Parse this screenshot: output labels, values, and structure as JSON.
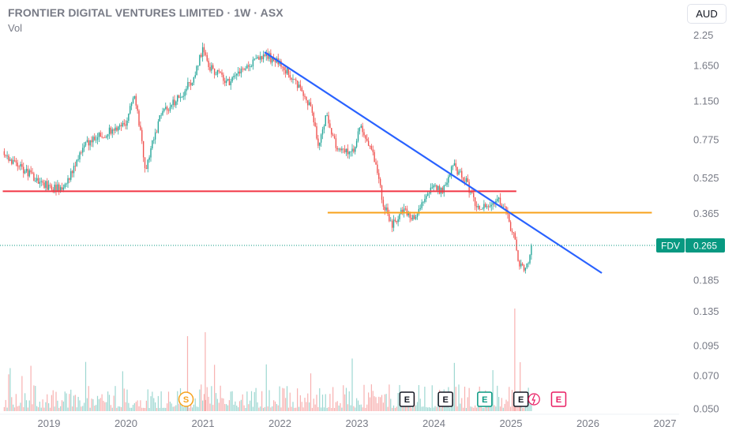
{
  "header": {
    "title": "FRONTIER DIGITAL VENTURES LIMITED · 1W · ASX",
    "volume_label": "Vol"
  },
  "currency_button": "AUD",
  "colors": {
    "up": "#26a69a",
    "down": "#ef5350",
    "trendline": "#2962ff",
    "resistance": "#f23645",
    "support": "#f7a21b",
    "badge": "#089981"
  },
  "price_badge": {
    "ticker": "FDV",
    "price": "0.265"
  },
  "chart_data": {
    "type": "candlestick",
    "y_scale": "log",
    "y_ticks": [
      "2.25",
      "1.650",
      "1.150",
      "0.775",
      "0.525",
      "0.365",
      "0.265",
      "0.185",
      "0.135",
      "0.095",
      "0.070",
      "0.050"
    ],
    "x_ticks": [
      "2019",
      "2020",
      "2021",
      "2022",
      "2023",
      "2024",
      "2025",
      "2026",
      "2027"
    ],
    "last_price": 0.265,
    "trendline": {
      "from": {
        "date": "2021.80",
        "price": 1.9
      },
      "to": {
        "date": "2026.18",
        "price": 0.2
      }
    },
    "horizontal_levels": [
      {
        "price": 0.46,
        "from": "2018.40",
        "to": "2025.07"
      },
      {
        "price": 0.37,
        "from": "2022.62",
        "to": "2026.83"
      }
    ],
    "price_path": [
      [
        "2018.40",
        0.67
      ],
      [
        "2018.60",
        0.6
      ],
      [
        "2018.80",
        0.53
      ],
      [
        "2019.00",
        0.48
      ],
      [
        "2019.15",
        0.47
      ],
      [
        "2019.30",
        0.55
      ],
      [
        "2019.45",
        0.72
      ],
      [
        "2019.60",
        0.8
      ],
      [
        "2019.80",
        0.85
      ],
      [
        "2020.00",
        0.9
      ],
      [
        "2020.10",
        1.25
      ],
      [
        "2020.20",
        0.8
      ],
      [
        "2020.25",
        0.58
      ],
      [
        "2020.45",
        1.0
      ],
      [
        "2020.70",
        1.2
      ],
      [
        "2020.90",
        1.5
      ],
      [
        "2021.00",
        2.0
      ],
      [
        "2021.10",
        1.6
      ],
      [
        "2021.35",
        1.4
      ],
      [
        "2021.55",
        1.6
      ],
      [
        "2021.80",
        1.85
      ],
      [
        "2022.00",
        1.7
      ],
      [
        "2022.20",
        1.4
      ],
      [
        "2022.40",
        1.1
      ],
      [
        "2022.50",
        0.75
      ],
      [
        "2022.60",
        1.0
      ],
      [
        "2022.75",
        0.7
      ],
      [
        "2022.95",
        0.68
      ],
      [
        "2023.05",
        0.9
      ],
      [
        "2023.20",
        0.68
      ],
      [
        "2023.35",
        0.4
      ],
      [
        "2023.45",
        0.32
      ],
      [
        "2023.60",
        0.38
      ],
      [
        "2023.75",
        0.34
      ],
      [
        "2023.85",
        0.42
      ],
      [
        "2024.00",
        0.48
      ],
      [
        "2024.10",
        0.46
      ],
      [
        "2024.25",
        0.6
      ],
      [
        "2024.40",
        0.52
      ],
      [
        "2024.55",
        0.4
      ],
      [
        "2024.70",
        0.38
      ],
      [
        "2024.85",
        0.42
      ],
      [
        "2024.95",
        0.36
      ],
      [
        "2025.05",
        0.28
      ],
      [
        "2025.10",
        0.22
      ],
      [
        "2025.20",
        0.21
      ],
      [
        "2025.28",
        0.265
      ]
    ],
    "events": [
      {
        "label": "S",
        "date": "2020.78",
        "kind": "split"
      },
      {
        "label": "E",
        "date": "2023.65",
        "kind": "earnings-past"
      },
      {
        "label": "E",
        "date": "2024.15",
        "kind": "earnings-past"
      },
      {
        "label": "E",
        "date": "2024.66",
        "kind": "earnings-beat"
      },
      {
        "label": "E",
        "date": "2025.13",
        "kind": "earnings-past"
      },
      {
        "label": "E",
        "date": "2025.62",
        "kind": "earnings-upcoming"
      }
    ]
  }
}
